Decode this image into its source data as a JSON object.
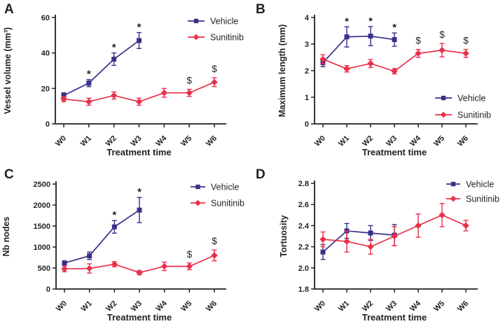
{
  "figure": {
    "background": "#ffffff",
    "axis_color": "#231f20",
    "text_color": "#231f20",
    "series_colors": {
      "Vehicle": "#37308a",
      "Sunitinib": "#e93049"
    },
    "legend_labels": [
      "Vehicle",
      "Sunitinib"
    ]
  },
  "chart_data": [
    {
      "panel": "A",
      "type": "line",
      "xlabel": "Treatment time",
      "ylabel": "Vessel volume (mm³)",
      "categories": [
        "W0",
        "W1",
        "W2",
        "W3",
        "W4",
        "W5",
        "W6"
      ],
      "ylim": [
        0,
        60
      ],
      "yticks": [
        0,
        20,
        40,
        60
      ],
      "ytick_labels": [
        "0",
        "20",
        "40",
        "60"
      ],
      "grid": false,
      "legend_position": "top-right",
      "series": [
        {
          "name": "Vehicle",
          "color": "#37308a",
          "marker": "square",
          "values": [
            16,
            23,
            36.5,
            47,
            null,
            null,
            null
          ],
          "errors": [
            1.5,
            2,
            3.5,
            4.5,
            null,
            null,
            null
          ]
        },
        {
          "name": "Sunitinib",
          "color": "#e93049",
          "marker": "diamond",
          "values": [
            14,
            12.5,
            16,
            12.5,
            17.5,
            17.5,
            23.5
          ],
          "errors": [
            1.5,
            2,
            2,
            2,
            2.5,
            2,
            2.5
          ]
        }
      ],
      "annotations": [
        {
          "symbol": "*",
          "series": "Vehicle",
          "category": "W1"
        },
        {
          "symbol": "*",
          "series": "Vehicle",
          "category": "W2"
        },
        {
          "symbol": "*",
          "series": "Vehicle",
          "category": "W3"
        },
        {
          "symbol": "$",
          "series": "Sunitinib",
          "category": "W5"
        },
        {
          "symbol": "$",
          "series": "Sunitinib",
          "category": "W6"
        }
      ]
    },
    {
      "panel": "B",
      "type": "line",
      "xlabel": "Treatment time",
      "ylabel": "Maximum length (mm)",
      "categories": [
        "W0",
        "W1",
        "W2",
        "W3",
        "W4",
        "W5",
        "W6"
      ],
      "ylim": [
        0,
        4
      ],
      "yticks": [
        0,
        1,
        2,
        3,
        4
      ],
      "ytick_labels": [
        "0",
        "1",
        "2",
        "3",
        "4"
      ],
      "grid": false,
      "legend_position": "right-middle",
      "series": [
        {
          "name": "Vehicle",
          "color": "#37308a",
          "marker": "square",
          "values": [
            2.3,
            3.27,
            3.3,
            3.17,
            null,
            null,
            null
          ],
          "errors": [
            0.15,
            0.38,
            0.36,
            0.25,
            null,
            null,
            null
          ]
        },
        {
          "name": "Sunitinib",
          "color": "#e93049",
          "marker": "diamond",
          "values": [
            2.43,
            2.07,
            2.27,
            1.98,
            2.65,
            2.77,
            2.65
          ],
          "errors": [
            0.17,
            0.12,
            0.15,
            0.1,
            0.15,
            0.25,
            0.15
          ]
        }
      ],
      "annotations": [
        {
          "symbol": "*",
          "series": "Vehicle",
          "category": "W1"
        },
        {
          "symbol": "*",
          "series": "Vehicle",
          "category": "W2"
        },
        {
          "symbol": "*",
          "series": "Vehicle",
          "category": "W3"
        },
        {
          "symbol": "$",
          "series": "Sunitinib",
          "category": "W4"
        },
        {
          "symbol": "$",
          "series": "Sunitinib",
          "category": "W5"
        },
        {
          "symbol": "$",
          "series": "Sunitinib",
          "category": "W6"
        }
      ]
    },
    {
      "panel": "C",
      "type": "line",
      "xlabel": "Treatment time",
      "ylabel": "Nb nodes",
      "categories": [
        "W0",
        "W1",
        "W2",
        "W3",
        "W4",
        "W5",
        "W6"
      ],
      "ylim": [
        0,
        2500
      ],
      "yticks": [
        0,
        500,
        1000,
        1500,
        2000,
        2500
      ],
      "ytick_labels": [
        "0",
        "500",
        "1000",
        "1500",
        "2000",
        "2500"
      ],
      "grid": false,
      "legend_position": "top-right",
      "series": [
        {
          "name": "Vehicle",
          "color": "#37308a",
          "marker": "square",
          "values": [
            620,
            790,
            1480,
            1880,
            null,
            null,
            null
          ],
          "errors": [
            50,
            90,
            150,
            300,
            null,
            null,
            null
          ]
        },
        {
          "name": "Sunitinib",
          "color": "#e93049",
          "marker": "diamond",
          "values": [
            480,
            490,
            590,
            390,
            540,
            540,
            800
          ],
          "errors": [
            70,
            110,
            60,
            50,
            100,
            80,
            130
          ]
        }
      ],
      "annotations": [
        {
          "symbol": "*",
          "series": "Vehicle",
          "category": "W2"
        },
        {
          "symbol": "*",
          "series": "Vehicle",
          "category": "W3"
        },
        {
          "symbol": "$",
          "series": "Sunitinib",
          "category": "W5"
        },
        {
          "symbol": "$",
          "series": "Sunitinib",
          "category": "W6"
        }
      ]
    },
    {
      "panel": "D",
      "type": "line",
      "xlabel": "Treatment time",
      "ylabel": "Tortuosity",
      "categories": [
        "W0",
        "W1",
        "W2",
        "W3",
        "W4",
        "W5",
        "W6"
      ],
      "ylim": [
        1.8,
        2.8
      ],
      "yticks": [
        1.8,
        2.0,
        2.2,
        2.4,
        2.6,
        2.8
      ],
      "ytick_labels": [
        "1.8",
        "2.0",
        "2.2",
        "2.4",
        "2.6",
        "2.8"
      ],
      "grid": false,
      "legend_position": "top-right",
      "series": [
        {
          "name": "Vehicle",
          "color": "#37308a",
          "marker": "square",
          "values": [
            2.15,
            2.35,
            2.33,
            2.31,
            null,
            null,
            null
          ],
          "errors": [
            0.07,
            0.07,
            0.07,
            0.1,
            null,
            null,
            null
          ]
        },
        {
          "name": "Sunitinib",
          "color": "#e93049",
          "marker": "diamond",
          "values": [
            2.27,
            2.25,
            2.2,
            2.3,
            2.4,
            2.5,
            2.4
          ],
          "errors": [
            0.07,
            0.1,
            0.07,
            0.09,
            0.11,
            0.11,
            0.05
          ]
        }
      ],
      "annotations": []
    }
  ]
}
